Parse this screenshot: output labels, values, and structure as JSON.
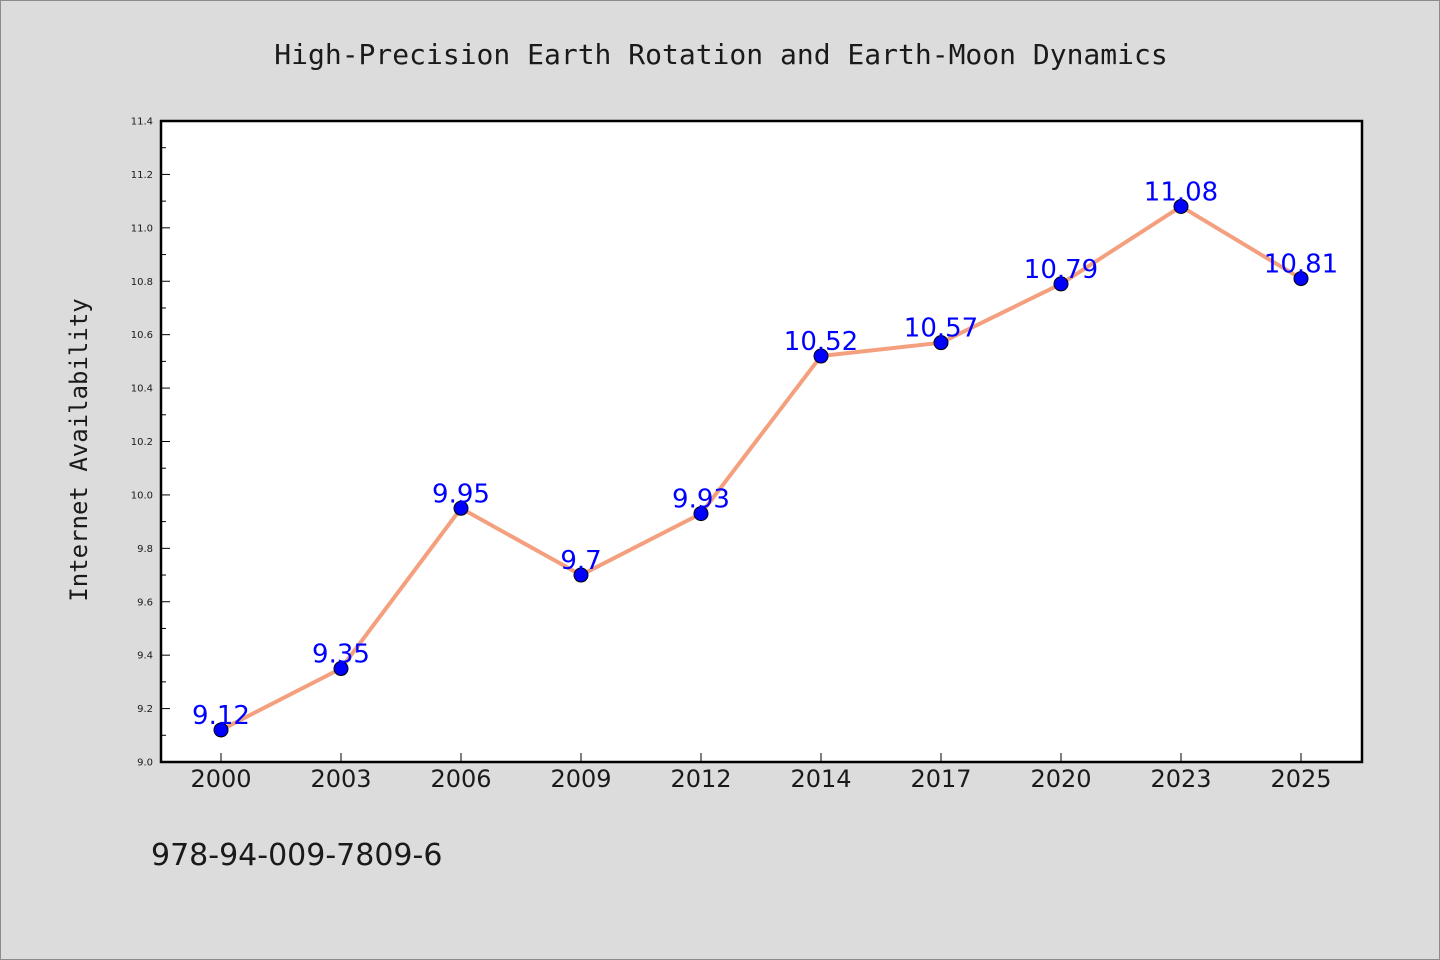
{
  "chart_data": {
    "type": "line",
    "title": "High-Precision Earth Rotation and Earth-Moon Dynamics",
    "xlabel": "",
    "ylabel": "Internet Availability",
    "categories": [
      "2000",
      "2003",
      "2006",
      "2009",
      "2012",
      "2014",
      "2017",
      "2020",
      "2023",
      "2025"
    ],
    "values": [
      9.12,
      9.35,
      9.95,
      9.7,
      9.93,
      10.52,
      10.57,
      10.79,
      11.08,
      10.81
    ],
    "data_labels": [
      "9.12",
      "9.35",
      "9.95",
      "9.7",
      "9.93",
      "10.52",
      "10.57",
      "10.79",
      "11.08",
      "10.81"
    ],
    "ylim": [
      9.0,
      11.4
    ],
    "yticks": [
      "9.0",
      "9.2",
      "9.4",
      "9.6",
      "9.8",
      "10.0",
      "10.2",
      "10.4",
      "10.6",
      "10.8",
      "11.0",
      "11.2",
      "11.4"
    ],
    "grid": false,
    "legend": "none",
    "colors": {
      "line": "#f4a07f",
      "marker": "#0000ff",
      "data_label": "#0000ff",
      "plot_background": "#ffffff",
      "figure_background": "#dcdcdc"
    }
  },
  "footer": {
    "isbn": "978-94-009-7809-6"
  }
}
